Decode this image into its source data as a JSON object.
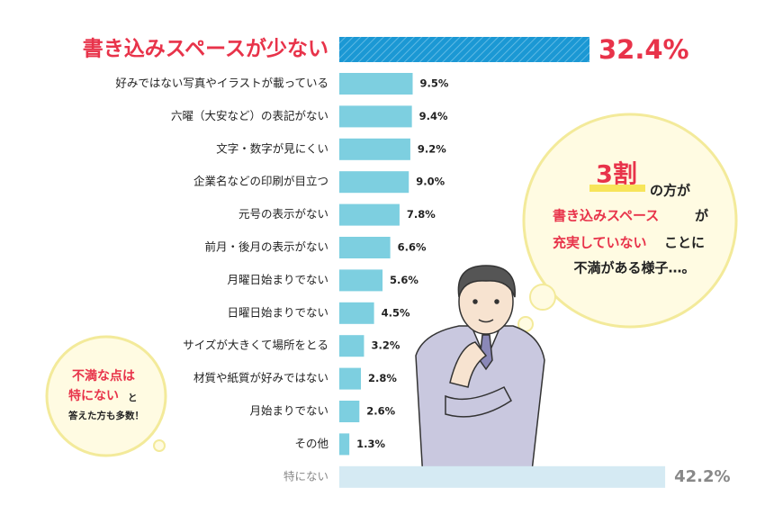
{
  "chart_data": {
    "type": "bar",
    "orientation": "horizontal",
    "categories": [
      "書き込みスペースが少ない",
      "好みではない写真やイラストが載っている",
      "六曜（大安など）の表記がない",
      "文字・数字が見にくい",
      "企業名などの印刷が目立つ",
      "元号の表示がない",
      "前月・後月の表示がない",
      "月曜日始まりでない",
      "日曜日始まりでない",
      "サイズが大きくて場所をとる",
      "材質や紙質が好みではない",
      "月始まりでない",
      "その他",
      "特にない"
    ],
    "values": [
      32.4,
      9.5,
      9.4,
      9.2,
      9.0,
      7.8,
      6.6,
      5.6,
      4.5,
      3.2,
      2.8,
      2.6,
      1.3,
      42.2
    ],
    "value_labels": [
      "32.4%",
      "9.5%",
      "9.4%",
      "9.2%",
      "9.0%",
      "7.8%",
      "6.6%",
      "5.6%",
      "4.5%",
      "3.2%",
      "2.8%",
      "2.6%",
      "1.3%",
      "42.2%"
    ],
    "bar_colors": [
      "#1b98d4",
      "#7dcfe0",
      "#7dcfe0",
      "#7dcfe0",
      "#7dcfe0",
      "#7dcfe0",
      "#7dcfe0",
      "#7dcfe0",
      "#7dcfe0",
      "#7dcfe0",
      "#7dcfe0",
      "#7dcfe0",
      "#7dcfe0",
      "#d5eaf3"
    ],
    "xlim": [
      0,
      50
    ],
    "annotations": {
      "right_bubble": [
        "3割",
        "の方が",
        "書き込みスペース",
        "が",
        "充実していない",
        "ことに",
        "不満がある様子…。"
      ],
      "left_bubble": [
        "不満な点は",
        "特にない",
        "と",
        "答えた方も多数！"
      ]
    }
  }
}
